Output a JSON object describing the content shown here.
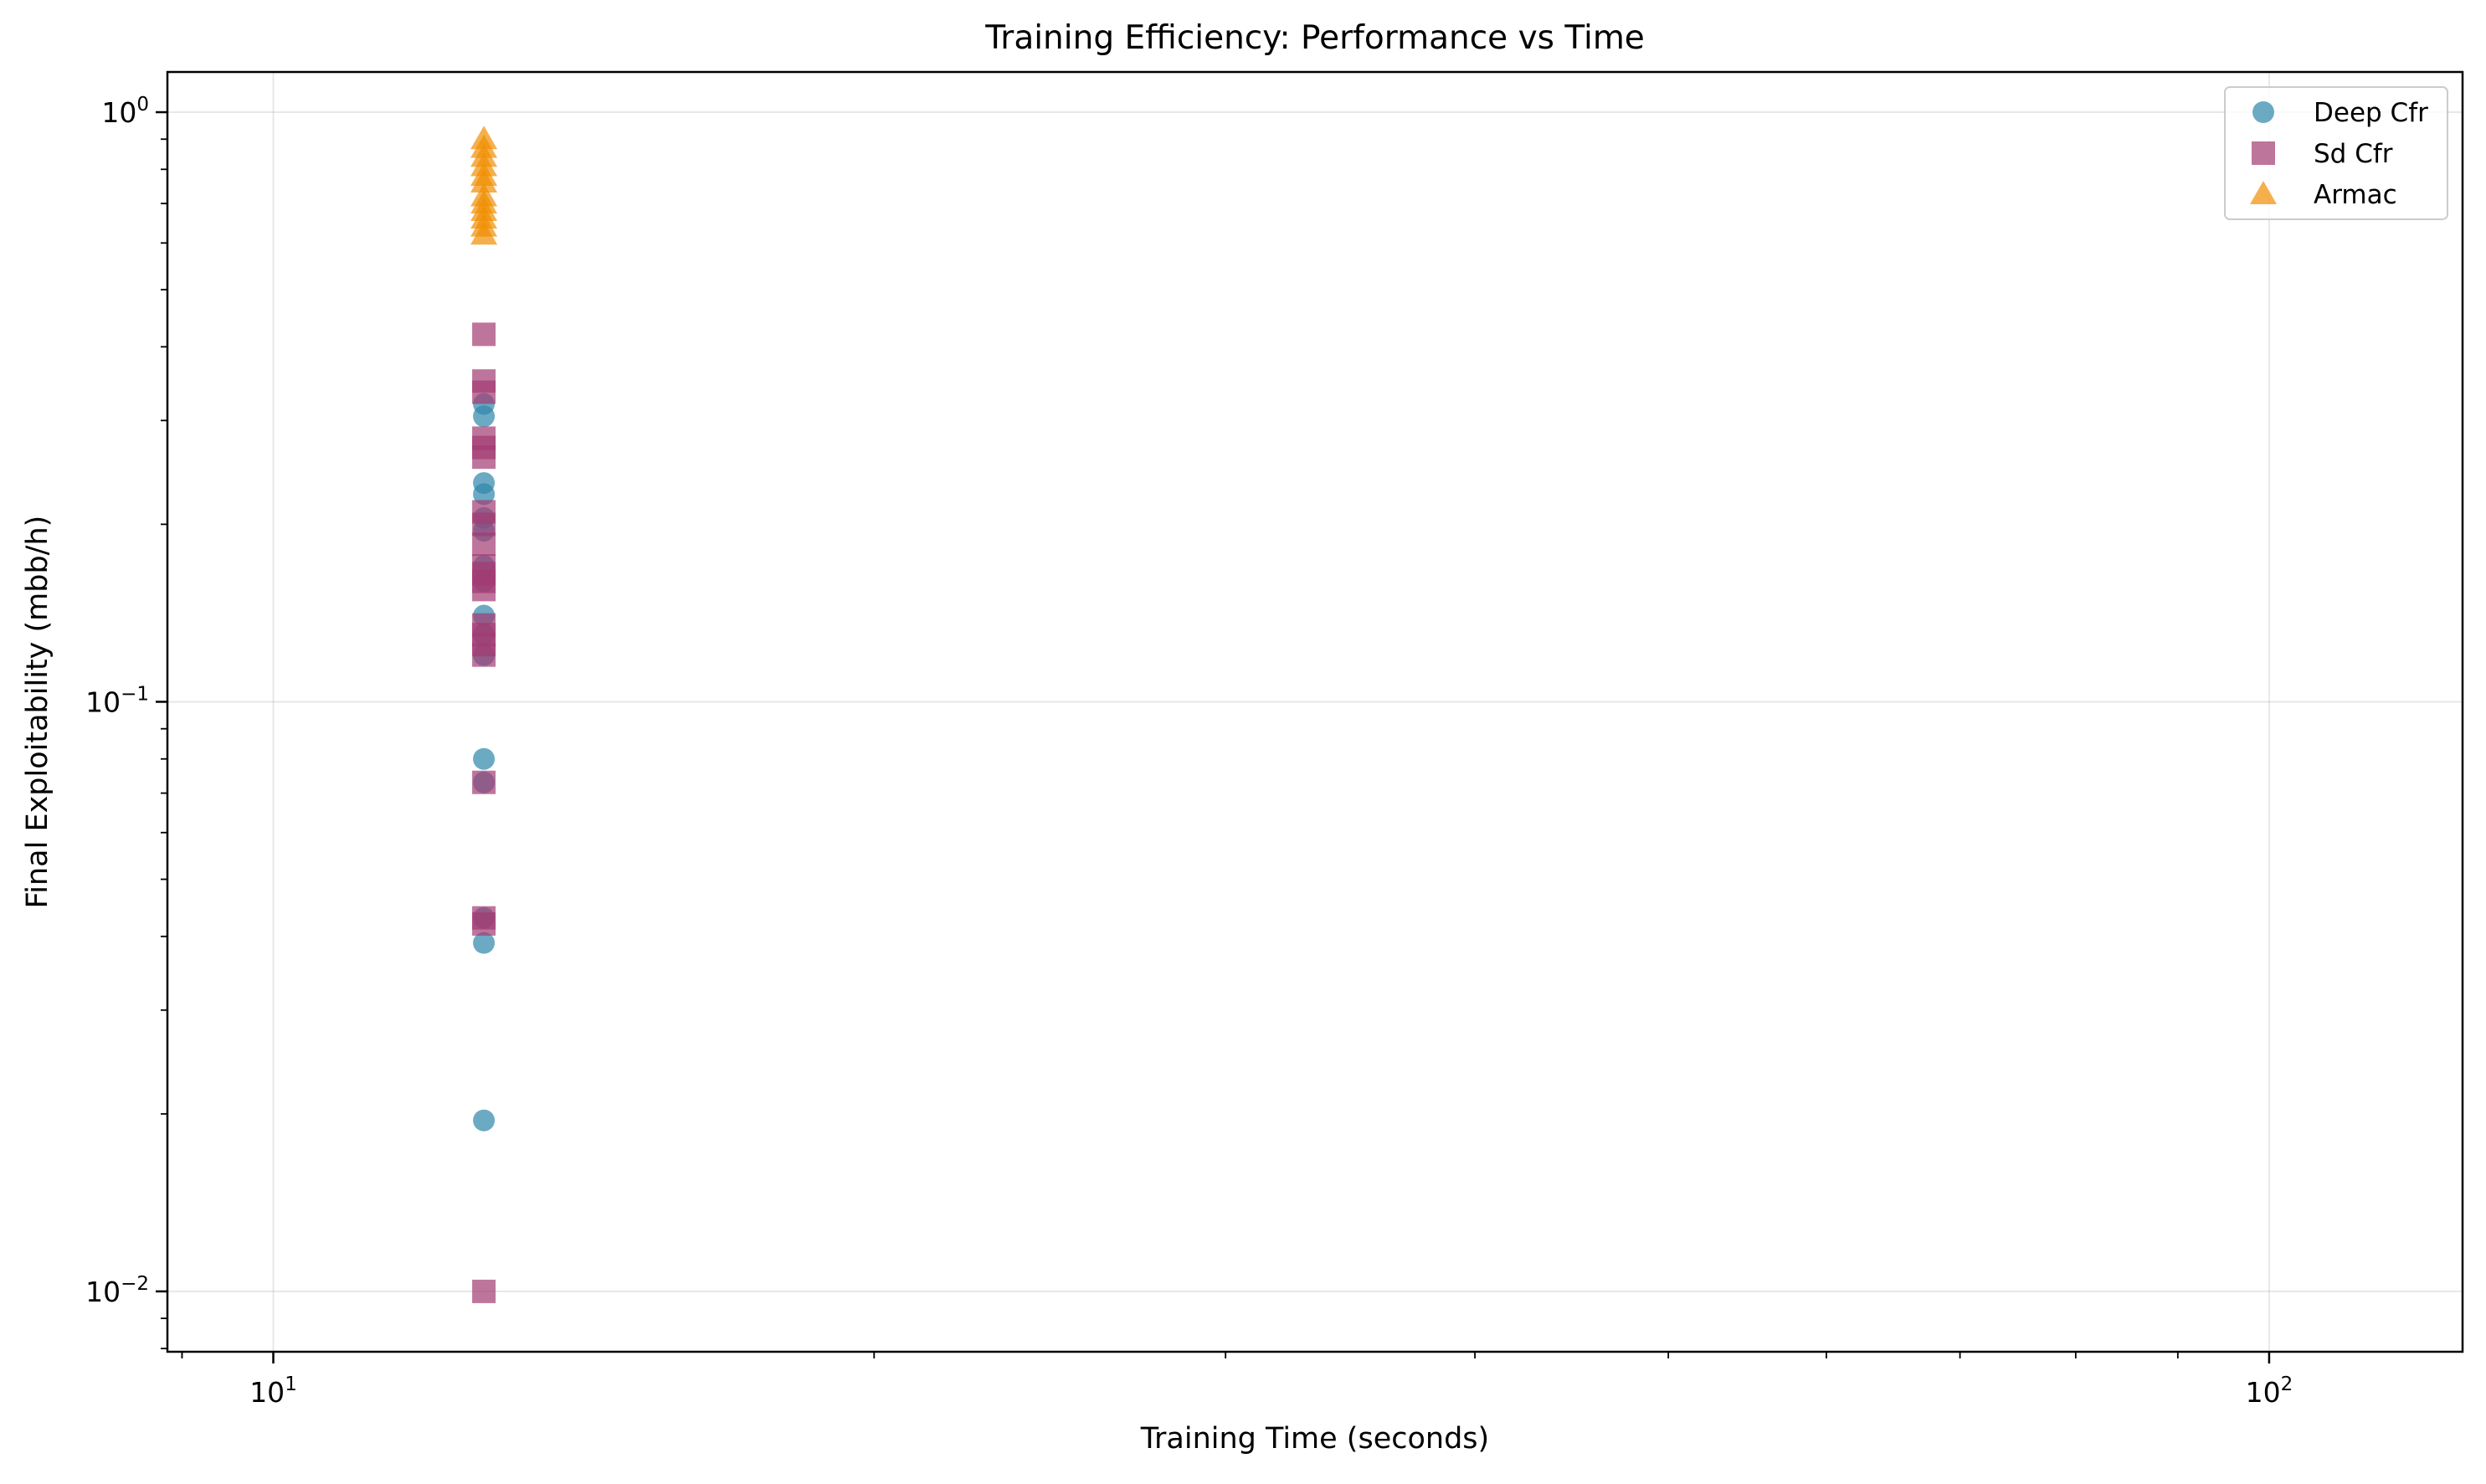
{
  "chart_data": {
    "type": "scatter",
    "title": "Training Efficiency: Performance vs Time",
    "xlabel": "Training Time (seconds)",
    "ylabel": "Final Exploitability (mbb/h)",
    "xscale": "log",
    "yscale": "log",
    "xlim": [
      8.85,
      125
    ],
    "ylim": [
      0.0079,
      1.17
    ],
    "x_ticks": [
      {
        "value": 10,
        "base": "10",
        "exp": "1"
      },
      {
        "value": 100,
        "base": "10",
        "exp": "2"
      }
    ],
    "y_ticks": [
      {
        "value": 0.01,
        "base": "10",
        "exp": "−2"
      },
      {
        "value": 0.1,
        "base": "10",
        "exp": "−1"
      },
      {
        "value": 1,
        "base": "10",
        "exp": "0"
      }
    ],
    "grid": true,
    "legend_position": "top-right",
    "series": [
      {
        "name": "Deep Cfr",
        "marker": "circle",
        "color": "#2E86AB",
        "x": [
          12.75,
          12.75,
          12.75,
          12.75,
          12.75,
          12.75,
          12.75,
          12.75,
          12.75,
          12.75,
          12.75,
          12.75,
          12.75,
          12.75,
          12.75,
          12.75
        ],
        "y": [
          0.32,
          0.305,
          0.235,
          0.225,
          0.205,
          0.195,
          0.14,
          0.13,
          0.12,
          0.08,
          0.073,
          0.043,
          0.039,
          0.0195,
          0.16,
          0.17
        ]
      },
      {
        "name": "Sd Cfr",
        "marker": "square",
        "color": "#A23B72",
        "x": [
          12.75,
          12.75,
          12.75,
          12.75,
          12.75,
          12.75,
          12.75,
          12.75,
          12.75,
          12.75,
          12.75,
          12.75,
          12.75,
          12.75,
          12.75,
          12.75,
          12.75,
          12.75,
          12.75,
          12.75,
          12.75
        ],
        "y": [
          0.42,
          0.35,
          0.335,
          0.28,
          0.27,
          0.26,
          0.21,
          0.2,
          0.185,
          0.17,
          0.165,
          0.16,
          0.155,
          0.135,
          0.13,
          0.125,
          0.12,
          0.073,
          0.043,
          0.042,
          0.01
        ]
      },
      {
        "name": "Armac",
        "marker": "triangle",
        "color": "#F18F01",
        "x": [
          12.75,
          12.75,
          12.75,
          12.75,
          12.75,
          12.75,
          12.75,
          12.75,
          12.75,
          12.75,
          12.75,
          12.75
        ],
        "y": [
          0.9,
          0.87,
          0.84,
          0.81,
          0.78,
          0.76,
          0.72,
          0.7,
          0.68,
          0.66,
          0.64,
          0.62
        ]
      }
    ]
  }
}
